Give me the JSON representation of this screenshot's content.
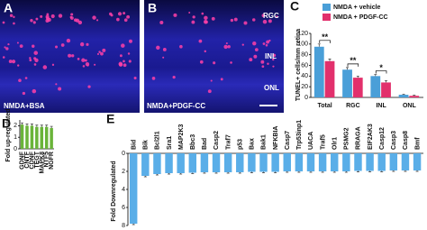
{
  "images": [
    {
      "label": "A",
      "caption": "NMDA+BSA"
    },
    {
      "label": "B",
      "caption": "NMDA+PDGF-CC",
      "layers": [
        "RGC",
        "INL",
        "ONL"
      ]
    }
  ],
  "chart_data": [
    {
      "type": "bar",
      "panel": "C",
      "ylabel": "TUNEL+ cells/mm retina",
      "categories": [
        "Total",
        "RGC",
        "INL",
        "ONL"
      ],
      "series": [
        {
          "name": "NMDA + vehicle",
          "color": "#4a9fd8",
          "values": [
            95,
            52,
            40,
            5
          ],
          "errors": [
            5,
            4,
            3,
            1
          ]
        },
        {
          "name": "NMDA + PDGF-CC",
          "color": "#e2306c",
          "values": [
            68,
            37,
            28,
            3
          ],
          "errors": [
            4,
            3,
            3,
            1
          ]
        }
      ],
      "significance": [
        "**",
        "**",
        "*",
        null
      ],
      "ylim": [
        0,
        120
      ],
      "yticks": [
        0,
        20,
        40,
        60,
        80,
        100,
        120
      ]
    },
    {
      "type": "bar",
      "panel": "D",
      "ylabel": "Fold up-regulated",
      "categories": [
        "GDNF",
        "CNTF",
        "CDNF",
        "TEGT",
        "MAPK8",
        "NTF5",
        "NGFR"
      ],
      "values": [
        2.1,
        2.0,
        2.0,
        1.9,
        1.9,
        1.9,
        1.8
      ],
      "errors": [
        0.15,
        0.15,
        0.15,
        0.15,
        0.15,
        0.15,
        0.15
      ],
      "color": "#6ab43a",
      "ylim": [
        0,
        2.5
      ],
      "yticks": [
        0,
        1,
        2
      ]
    },
    {
      "type": "bar",
      "panel": "E",
      "ylabel": "Fold Downregulated",
      "categories": [
        "Bid",
        "Bik",
        "Bcl2l1",
        "Sra1",
        "MAP2K3",
        "Bbc3",
        "Bad",
        "Casp2",
        "Traf7",
        "p53",
        "Bax",
        "Bak1",
        "NFKBIA",
        "Casp7",
        "Trp53inp1",
        "UACA",
        "Traf5",
        "Olr1",
        "PSMG2",
        "RRAGA",
        "EIF2AK3",
        "Casp12",
        "Casp3",
        "Casp8",
        "Bmf"
      ],
      "values": [
        -7.8,
        -2.5,
        -2.3,
        -2.2,
        -2.2,
        -2.15,
        -2.1,
        -2.1,
        -2.1,
        -2.1,
        -2.05,
        -2.05,
        -2.05,
        -2.0,
        -2.0,
        -2.0,
        -2.0,
        -2.0,
        -2.0,
        -1.95,
        -1.95,
        -1.95,
        -1.9,
        -1.9,
        -1.9
      ],
      "errors": [
        0.1,
        0.1,
        0.1,
        0.1,
        0.1,
        0.1,
        0.1,
        0.1,
        0.1,
        0.1,
        0.1,
        0.1,
        0.1,
        0.1,
        0.1,
        0.1,
        0.1,
        0.1,
        0.1,
        0.1,
        0.1,
        0.1,
        0.1,
        0.1,
        0.1
      ],
      "color": "#5aaee8",
      "ylim": [
        -8,
        0
      ],
      "yticks": [
        {
          "value": 0,
          "label": "0"
        },
        {
          "value": -2,
          "label": "2"
        },
        {
          "value": -4,
          "label": "4"
        },
        {
          "value": -6,
          "label": "6"
        },
        {
          "value": -8,
          "label": "8"
        }
      ]
    }
  ]
}
